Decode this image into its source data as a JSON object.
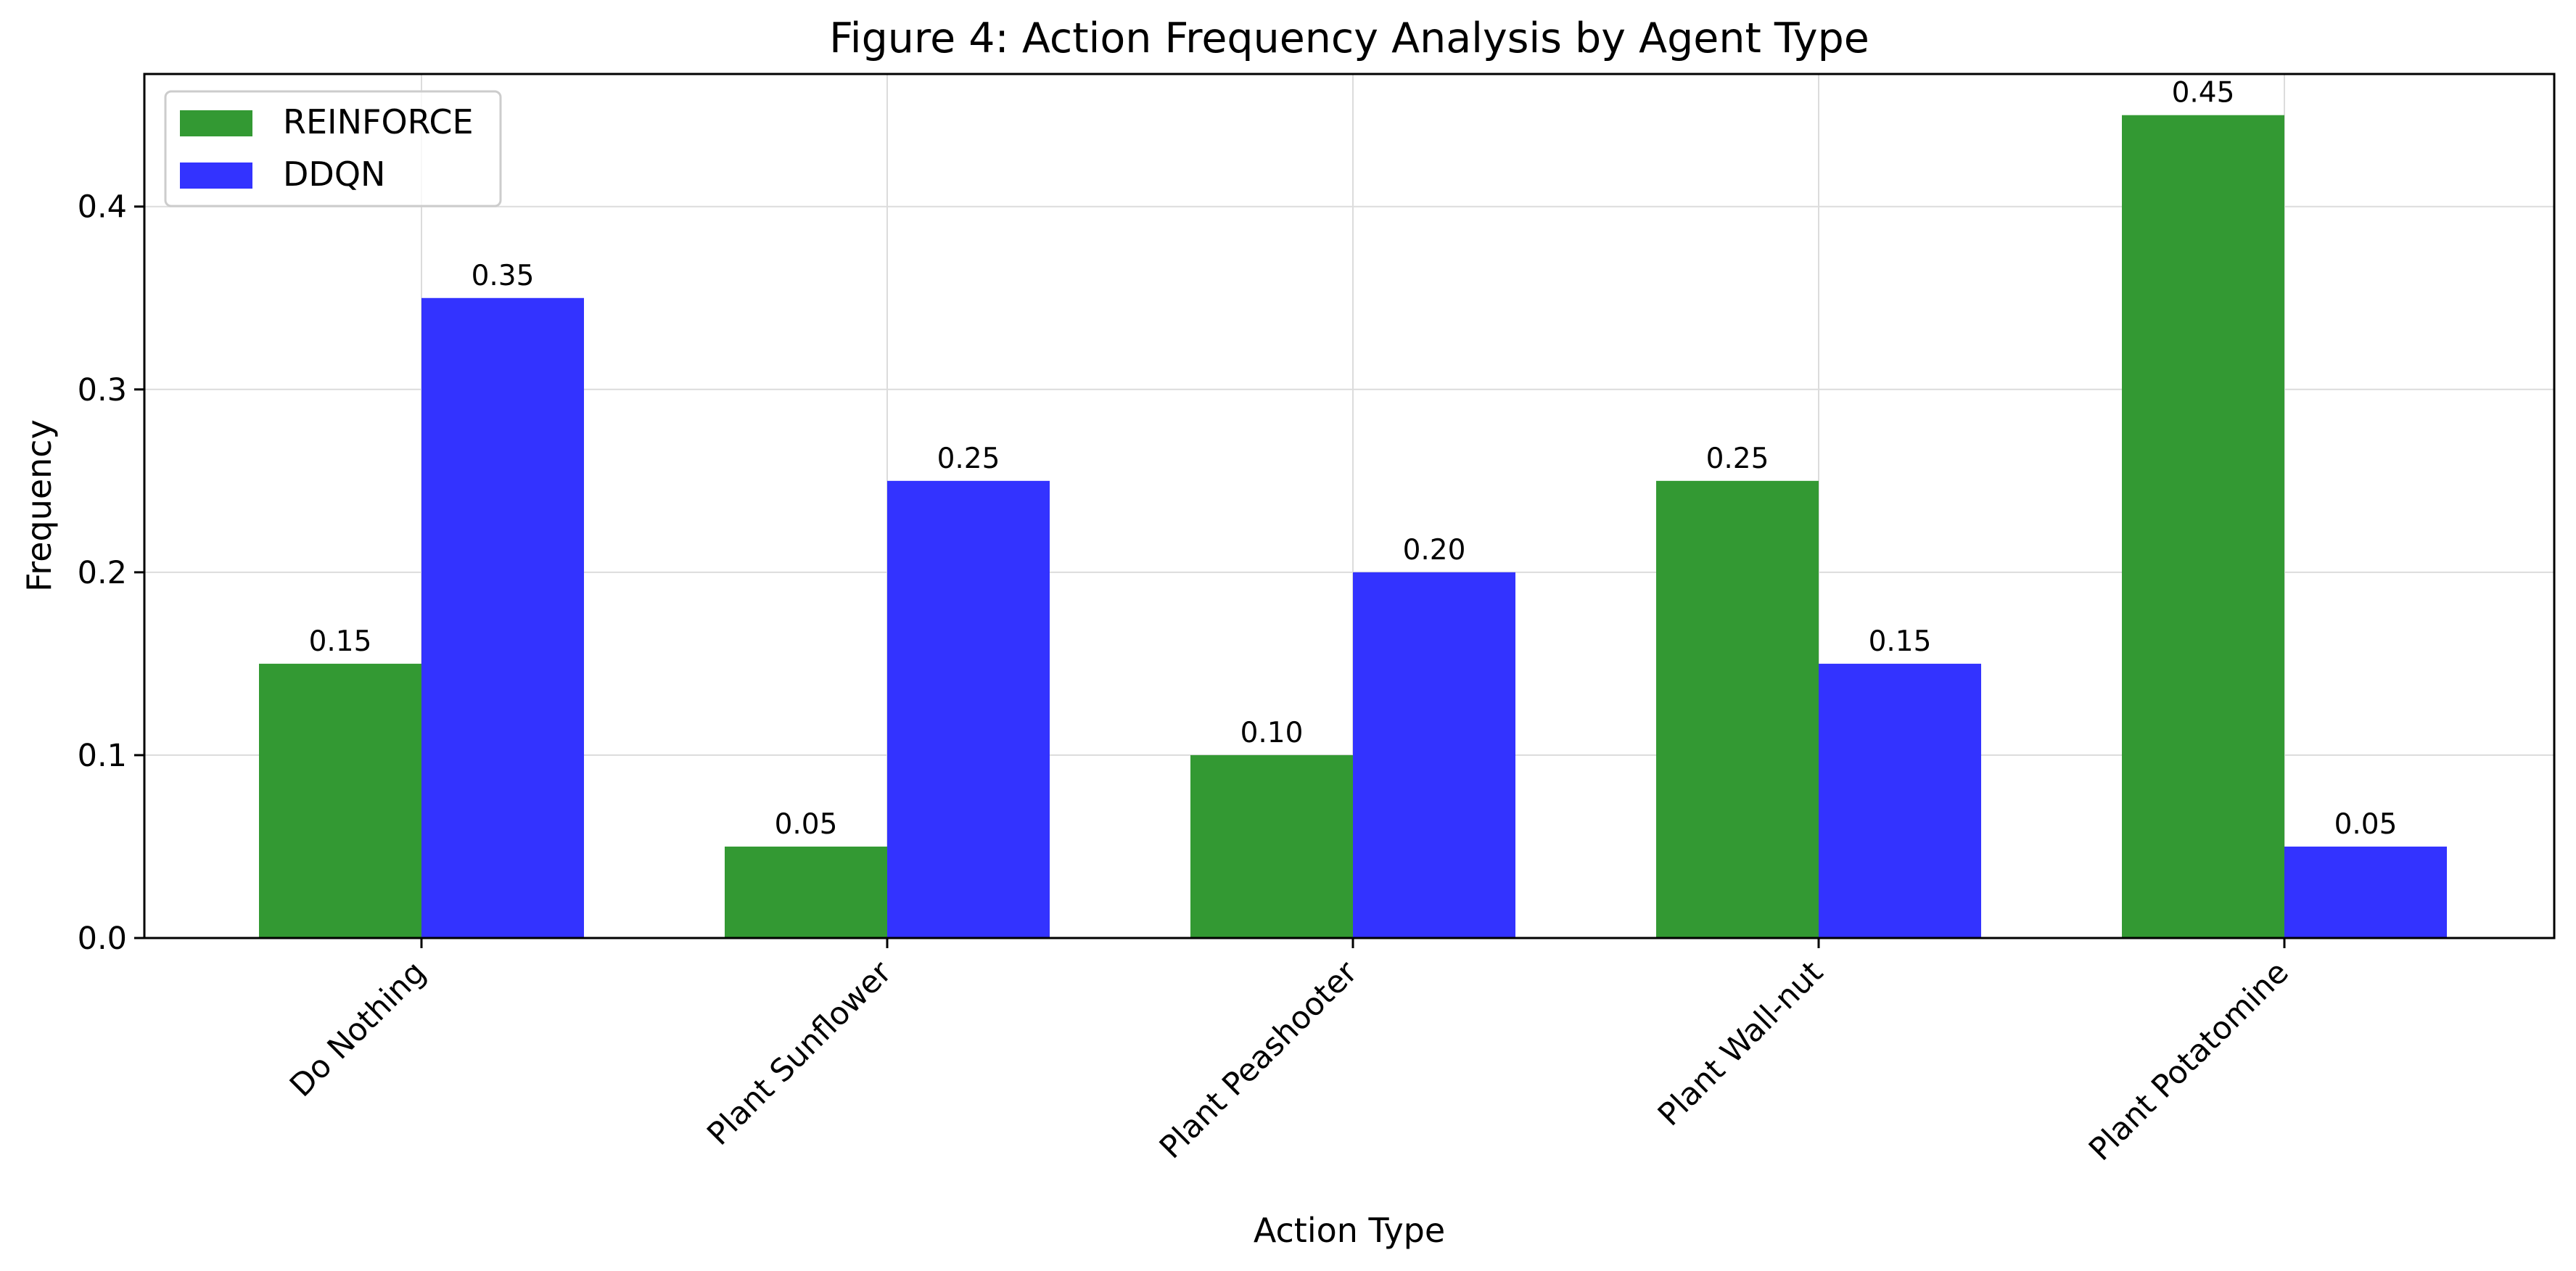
{
  "chart_data": {
    "type": "bar",
    "title": "Figure 4: Action Frequency Analysis by Agent Type",
    "xlabel": "Action Type",
    "ylabel": "Frequency",
    "categories": [
      "Do Nothing",
      "Plant Sunflower",
      "Plant Peashooter",
      "Plant Wall-nut",
      "Plant Potatomine"
    ],
    "series": [
      {
        "name": "REINFORCE",
        "values": [
          0.15,
          0.05,
          0.1,
          0.25,
          0.45
        ],
        "color": "#339933"
      },
      {
        "name": "DDQN",
        "values": [
          0.35,
          0.25,
          0.2,
          0.15,
          0.05
        ],
        "color": "#3333ff"
      }
    ],
    "data_labels": [
      [
        "0.15",
        "0.05",
        "0.10",
        "0.25",
        "0.45"
      ],
      [
        "0.35",
        "0.25",
        "0.20",
        "0.15",
        "0.05"
      ]
    ],
    "yticks": [
      0.0,
      0.1,
      0.2,
      0.3,
      0.4
    ],
    "ytick_labels": [
      "0.0",
      "0.1",
      "0.2",
      "0.3",
      "0.4"
    ],
    "ylim": [
      0,
      0.4725
    ],
    "grid": true,
    "legend_position": "top-left",
    "xtick_rotation": 45
  }
}
